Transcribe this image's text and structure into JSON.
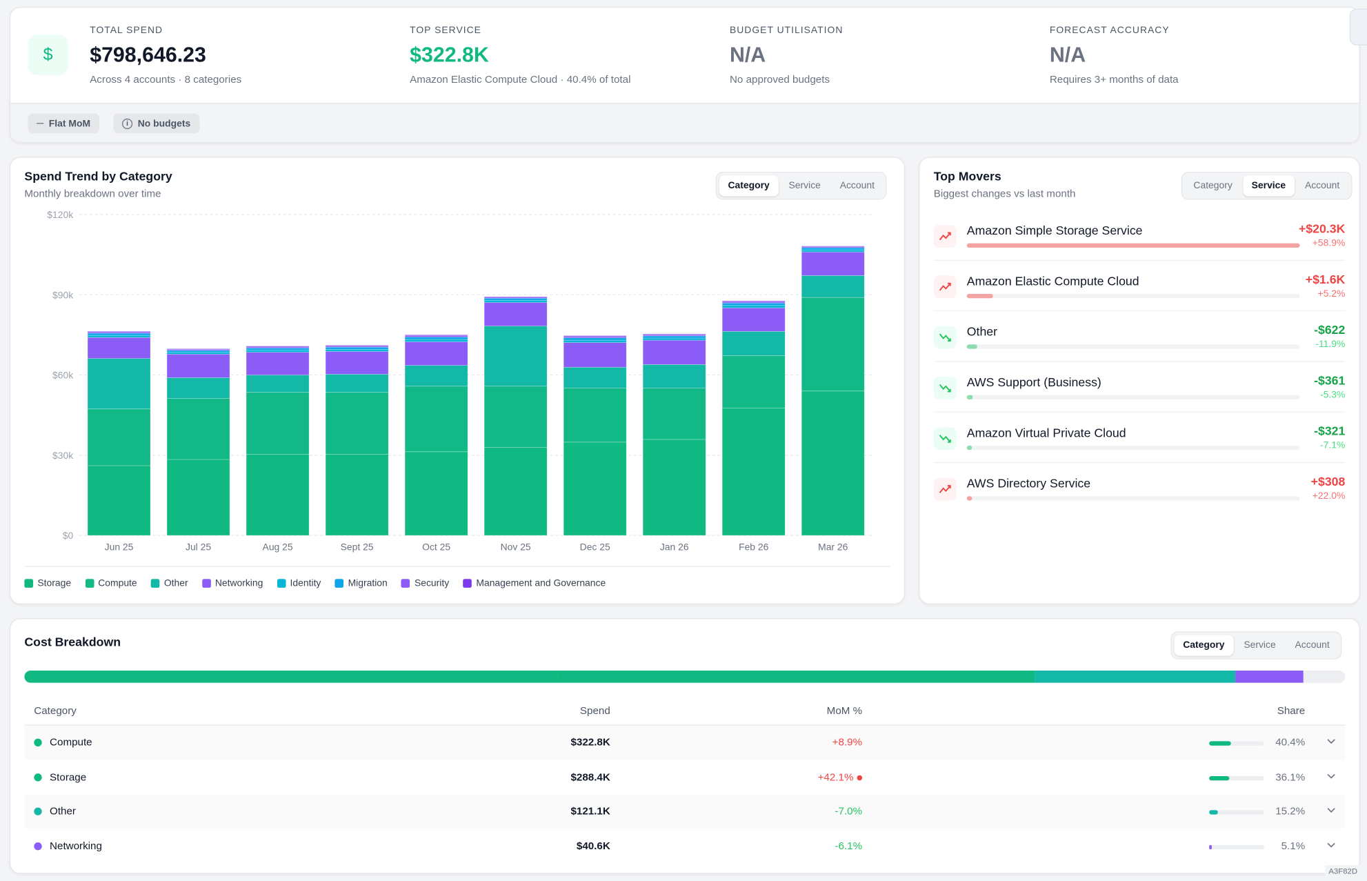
{
  "summary": {
    "kpis": [
      {
        "label": "TOTAL SPEND",
        "value": "$798,646.23",
        "sub": "Across 4 accounts · 8 categories",
        "color": "#111827"
      },
      {
        "label": "TOP SERVICE",
        "value": "$322.8K",
        "sub": "Amazon Elastic Compute Cloud · 40.4% of total",
        "color": "#10b981"
      },
      {
        "label": "BUDGET UTILISATION",
        "value": "N/A",
        "sub": "No approved budgets",
        "color": "#6b7280"
      },
      {
        "label": "FORECAST ACCURACY",
        "value": "N/A",
        "sub": "Requires 3+ months of data",
        "color": "#6b7280"
      }
    ],
    "chips": [
      "Flat MoM",
      "No budgets"
    ]
  },
  "spend_trend": {
    "tabs": [
      "Category",
      "Service",
      "Account"
    ],
    "active_tab": 0
  },
  "chart_data": {
    "type": "bar",
    "stacked": true,
    "grid": true,
    "title": "Spend Trend by Category",
    "subtitle": "Monthly breakdown over time",
    "categories": [
      "Jun 25",
      "Jul 25",
      "Aug 25",
      "Sept 25",
      "Oct 25",
      "Nov 25",
      "Dec 25",
      "Jan 26",
      "Feb 26",
      "Mar 26"
    ],
    "ylim": [
      0,
      120000
    ],
    "yticks": [
      {
        "value": 0,
        "label": "$0"
      },
      {
        "value": 30000,
        "label": "$30k"
      },
      {
        "value": 60000,
        "label": "$60k"
      },
      {
        "value": 90000,
        "label": "$90k"
      },
      {
        "value": 120000,
        "label": "$120k"
      }
    ],
    "series": [
      {
        "name": "Storage",
        "color": "#10b981",
        "values": [
          26100,
          28400,
          30300,
          30300,
          31300,
          32900,
          34900,
          35900,
          47600,
          54000
        ]
      },
      {
        "name": "Compute",
        "color": "#12b886",
        "values": [
          21200,
          22800,
          23200,
          23200,
          24500,
          22900,
          20200,
          19200,
          19600,
          35000
        ]
      },
      {
        "name": "Other",
        "color": "#14b8a6",
        "values": [
          18900,
          7800,
          6500,
          6800,
          7800,
          22500,
          7800,
          8800,
          9100,
          8200
        ]
      },
      {
        "name": "Networking",
        "color": "#8b5cf6",
        "values": [
          7800,
          8800,
          8500,
          8500,
          8800,
          8800,
          9200,
          9100,
          8800,
          8800
        ]
      },
      {
        "name": "Identity",
        "color": "#06b6d4",
        "values": [
          800,
          700,
          800,
          800,
          900,
          800,
          900,
          800,
          900,
          800
        ]
      },
      {
        "name": "Migration",
        "color": "#0ea5e9",
        "values": [
          800,
          700,
          800,
          800,
          900,
          800,
          900,
          800,
          900,
          800
        ]
      },
      {
        "name": "Security",
        "color": "#8b5cf6",
        "values": [
          400,
          400,
          400,
          400,
          500,
          400,
          500,
          400,
          500,
          400
        ]
      },
      {
        "name": "Management and Governance",
        "color": "#7c3aed",
        "values": [
          300,
          200,
          300,
          300,
          300,
          200,
          300,
          300,
          300,
          200
        ]
      }
    ]
  },
  "top_movers": {
    "title": "Top Movers",
    "subtitle": "Biggest changes vs last month",
    "tabs": [
      "Category",
      "Service",
      "Account"
    ],
    "active_tab": 1,
    "items": [
      {
        "name": "Amazon Simple Storage Service",
        "change": 20300,
        "change_label": "+$20.3K",
        "pct": "+58.9%"
      },
      {
        "name": "Amazon Elastic Compute Cloud",
        "change": 1600,
        "change_label": "+$1.6K",
        "pct": "+5.2%"
      },
      {
        "name": "Other",
        "change": -622,
        "change_label": "-$622",
        "pct": "-11.9%"
      },
      {
        "name": "AWS Support (Business)",
        "change": -361,
        "change_label": "-$361",
        "pct": "-5.3%"
      },
      {
        "name": "Amazon Virtual Private Cloud",
        "change": -321,
        "change_label": "-$321",
        "pct": "-7.1%"
      },
      {
        "name": "AWS Directory Service",
        "change": 308,
        "change_label": "+$308",
        "pct": "+22.0%"
      }
    ]
  },
  "cost_breakdown": {
    "title": "Cost Breakdown",
    "tabs": [
      "Category",
      "Service",
      "Account"
    ],
    "active_tab": 0,
    "columns": [
      "Category",
      "Spend",
      "MoM %",
      "Share"
    ],
    "rows": [
      {
        "name": "Compute",
        "color": "#10b981",
        "spend": "$322.8K",
        "mom": 8.9,
        "mom_label": "+8.9%",
        "alert": false,
        "share": 40.4,
        "share_label": "40.4%"
      },
      {
        "name": "Storage",
        "color": "#10b981",
        "spend": "$288.4K",
        "mom": 42.1,
        "mom_label": "+42.1%",
        "alert": true,
        "share": 36.1,
        "share_label": "36.1%"
      },
      {
        "name": "Other",
        "color": "#14b8a6",
        "spend": "$121.1K",
        "mom": -7.0,
        "mom_label": "-7.0%",
        "alert": false,
        "share": 15.2,
        "share_label": "15.2%"
      },
      {
        "name": "Networking",
        "color": "#8b5cf6",
        "spend": "$40.6K",
        "mom": -6.1,
        "mom_label": "-6.1%",
        "alert": false,
        "share": 5.1,
        "share_label": "5.1%"
      }
    ]
  },
  "build_id": "A3F82D"
}
